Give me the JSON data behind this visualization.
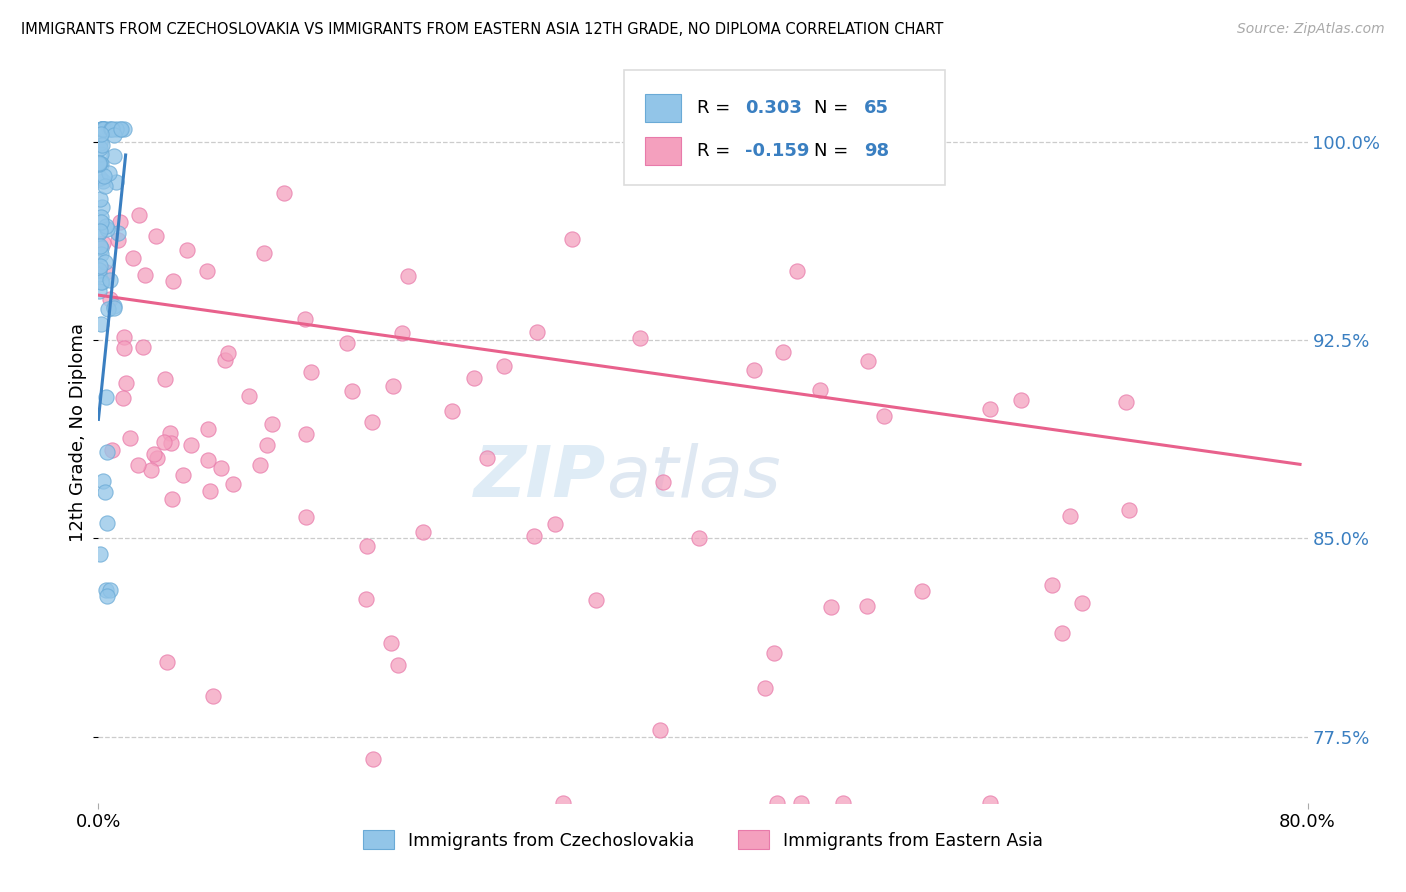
{
  "title": "IMMIGRANTS FROM CZECHOSLOVAKIA VS IMMIGRANTS FROM EASTERN ASIA 12TH GRADE, NO DIPLOMA CORRELATION CHART",
  "source": "Source: ZipAtlas.com",
  "ylabel": "12th Grade, No Diploma",
  "blue_label": "Immigrants from Czechoslovakia",
  "pink_label": "Immigrants from Eastern Asia",
  "legend_r_blue": "0.303",
  "legend_n_blue": "65",
  "legend_r_pink": "-0.159",
  "legend_n_pink": "98",
  "blue_color": "#92c5e8",
  "blue_edge": "#6aaad6",
  "pink_color": "#f4a0be",
  "pink_edge": "#e87aaa",
  "blue_line_color": "#3a7fc1",
  "pink_line_color": "#e8618c",
  "watermark_zip": "ZIP",
  "watermark_atlas": "atlas",
  "xlim": [
    0.0,
    0.8
  ],
  "ylim": [
    0.75,
    1.03
  ],
  "ytick_vals": [
    0.775,
    0.85,
    0.925,
    1.0
  ],
  "ytick_labels": [
    "77.5%",
    "85.0%",
    "92.5%",
    "100.0%"
  ],
  "xtick_vals": [
    0.0,
    0.8
  ],
  "xtick_labels": [
    "0.0%",
    "80.0%"
  ],
  "blue_trend_x": [
    0.0,
    0.018
  ],
  "blue_trend_y": [
    0.895,
    0.995
  ],
  "pink_trend_x": [
    0.0,
    0.795
  ],
  "pink_trend_y": [
    0.942,
    0.878
  ]
}
